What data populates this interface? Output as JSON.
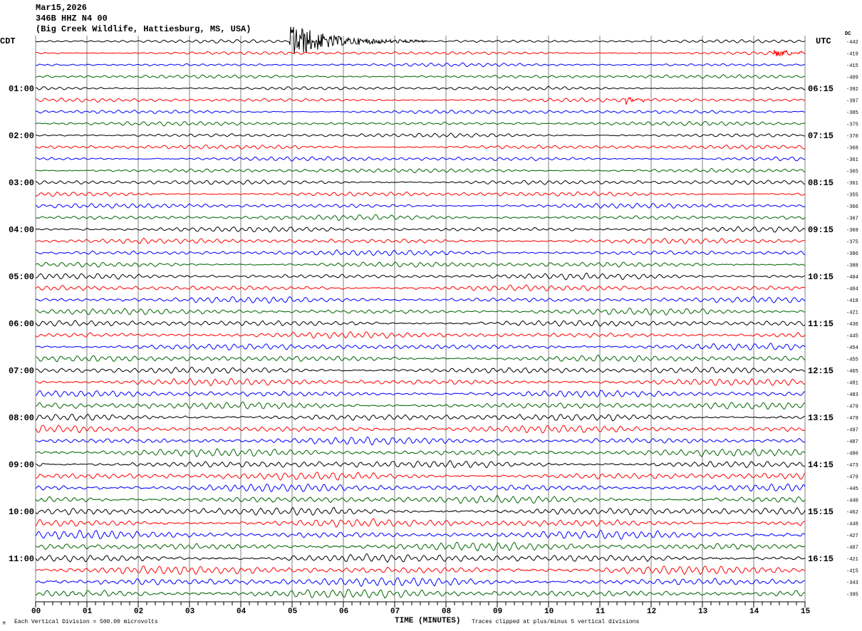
{
  "header": {
    "date": "Mar15,2026",
    "station": "346B HHZ N4 00",
    "location": "(Big Creek Wildlife, Hattiesburg, MS, USA)"
  },
  "left_timezone": "CDT",
  "right_timezone": "UTC",
  "dc_label": "DC",
  "footer": {
    "scale_note": "Each Vertical Division =  500.00 microvolts",
    "xlabel": "TIME (MINUTES)",
    "clip_note": "Traces clipped at plus/minus 5 vertical divisions"
  },
  "colors": {
    "trace_cycle": [
      "#000000",
      "#ff0000",
      "#0000ff",
      "#006400"
    ],
    "grid": "#808080"
  },
  "chart_data": {
    "type": "line",
    "title": "Mar15,2026 346B HHZ N4 00",
    "xlabel": "TIME (MINUTES)",
    "xlim": [
      0,
      15
    ],
    "x_ticks": [
      "00",
      "01",
      "02",
      "03",
      "04",
      "05",
      "06",
      "07",
      "08",
      "09",
      "10",
      "11",
      "12",
      "13",
      "14",
      "15"
    ],
    "rows_per_hour": 4,
    "minutes_per_row": 15,
    "left_hour_labels": [
      "01:00",
      "02:00",
      "03:00",
      "04:00",
      "05:00",
      "06:00",
      "07:00",
      "08:00",
      "09:00",
      "10:00",
      "11:00"
    ],
    "right_hour_labels": [
      "06:15",
      "07:15",
      "08:15",
      "09:15",
      "10:15",
      "11:15",
      "12:15",
      "13:15",
      "14:15",
      "15:15",
      "16:15"
    ],
    "dc_offsets": [
      -442,
      -419,
      -415,
      -409,
      -392,
      -397,
      -385,
      -375,
      -370,
      -368,
      -361,
      -365,
      -361,
      -355,
      -366,
      -367,
      -369,
      -375,
      -386,
      -388,
      -404,
      -404,
      -418,
      -421,
      -436,
      -445,
      -454,
      -455,
      -465,
      -481,
      -483,
      -479,
      -479,
      -497,
      -487,
      -486,
      -473,
      -479,
      -445,
      -440,
      -462,
      -448,
      -427,
      -407,
      -421,
      -415,
      -343,
      -395
    ],
    "events": [
      {
        "row": 0,
        "start_min": 4.95,
        "end_min": 7.6,
        "peak_divisions": 5
      },
      {
        "row": 1,
        "start_min": 14.4,
        "end_min": 14.95,
        "peak_divisions": 1
      },
      {
        "row": 5,
        "start_min": 11.5,
        "end_min": 11.95,
        "peak_divisions": 1
      }
    ]
  }
}
